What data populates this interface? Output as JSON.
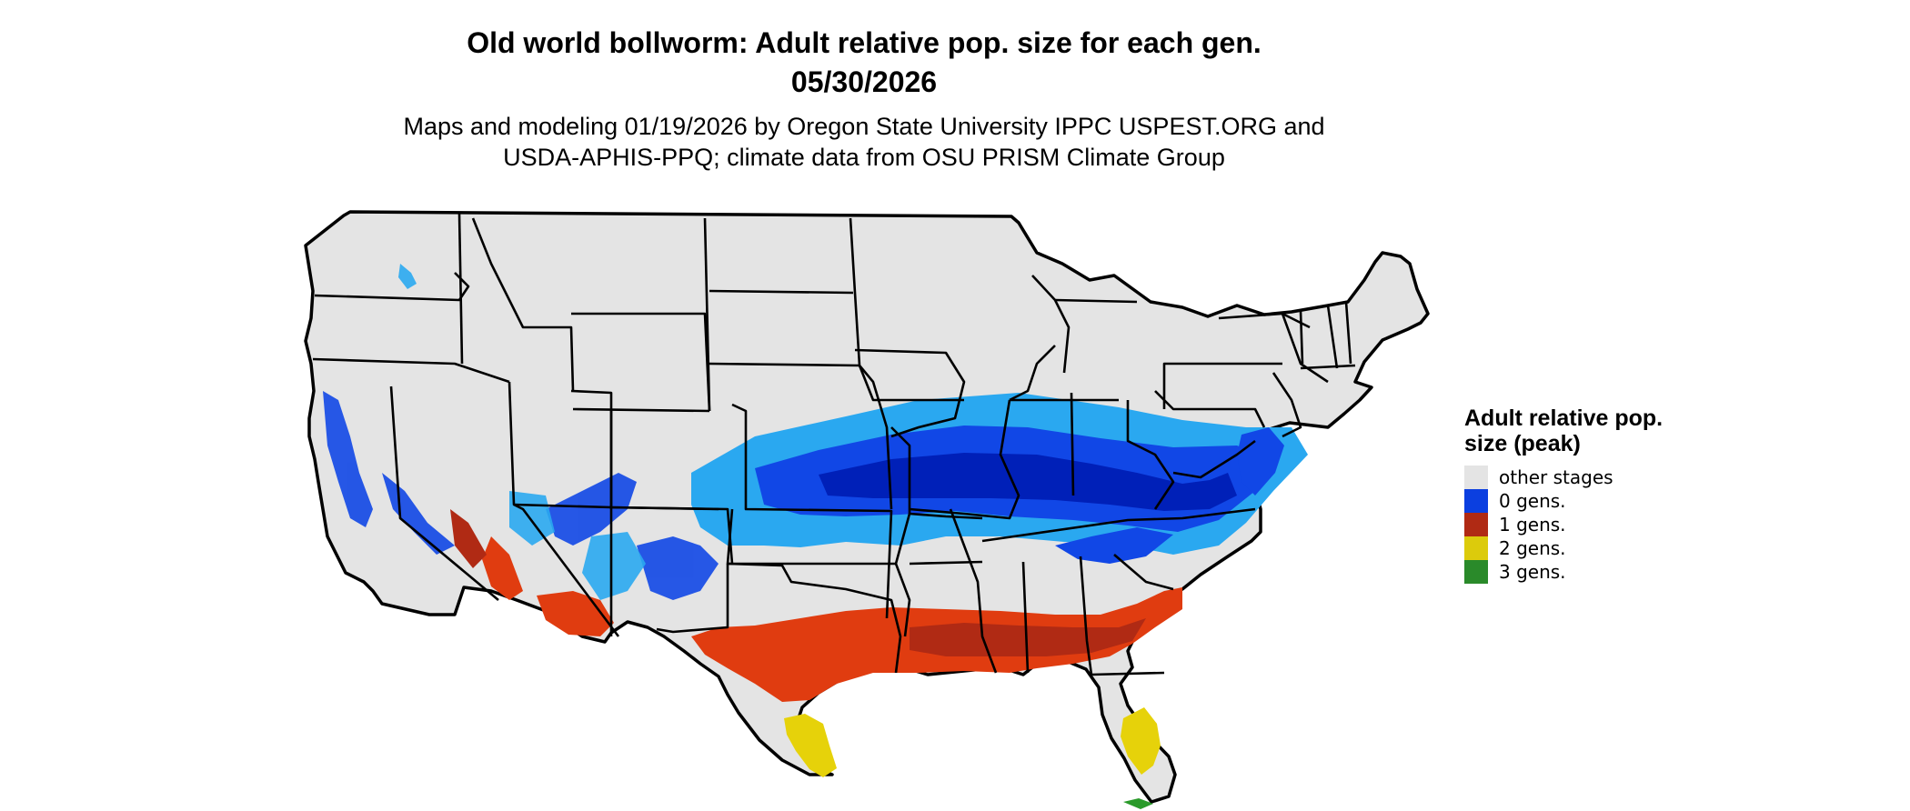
{
  "map": {
    "title_line1": "Old world bollworm: Adult relative pop. size for each gen.",
    "title_line2": "05/30/2026",
    "subtitle_line1": "Maps and modeling 01/19/2026 by Oregon State University IPPC USPEST.ORG and",
    "subtitle_line2": "USDA-APHIS-PPQ; climate data from OSU PRISM Climate Group",
    "region": "Contiguous United States",
    "colors": {
      "land": "#e4e4e4",
      "boundary": "#000000",
      "light_blue": "#2aa8f0",
      "blue": "#1147e6",
      "dark_blue": "#0020b8",
      "red_orange": "#e03c10",
      "red": "#b02a14",
      "yellow": "#e6d20a",
      "green": "#2a9a2a"
    }
  },
  "legend": {
    "title": "Adult relative pop. size (peak)",
    "items": [
      {
        "label": "other stages",
        "color": "#e4e4e4"
      },
      {
        "label": "0 gens.",
        "color": "#0b3fe0"
      },
      {
        "label": "1 gens.",
        "color": "#b02a14"
      },
      {
        "label": "2 gens.",
        "color": "#dccb0c"
      },
      {
        "label": "3 gens.",
        "color": "#2a8a2a"
      }
    ]
  }
}
